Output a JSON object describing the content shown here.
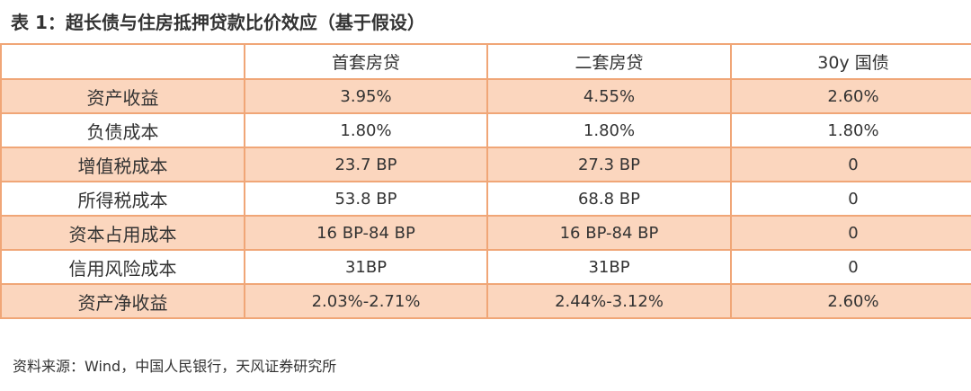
{
  "title": "表 1：超长债与住房抵押贷款比价效应（基于假设）",
  "table": {
    "headers": [
      "",
      "首套房贷",
      "二套房贷",
      "30y 国债"
    ],
    "rows": [
      [
        "资产收益",
        "3.95%",
        "4.55%",
        "2.60%"
      ],
      [
        "负债成本",
        "1.80%",
        "1.80%",
        "1.80%"
      ],
      [
        "增值税成本",
        "23.7 BP",
        "27.3 BP",
        "0"
      ],
      [
        "所得税成本",
        "53.8 BP",
        "68.8 BP",
        "0"
      ],
      [
        "资本占用成本",
        "16 BP-84 BP",
        "16 BP-84 BP",
        "0"
      ],
      [
        "信用风险成本",
        "31BP",
        "31BP",
        "0"
      ],
      [
        "资产净收益",
        "2.03%-2.71%",
        "2.44%-3.12%",
        "2.60%"
      ]
    ]
  },
  "source": "资料来源：Wind，中国人民银行，天风证券研究所",
  "colors": {
    "border": "#f0a677",
    "shaded_row": "#fbd6be",
    "text": "#333333"
  }
}
